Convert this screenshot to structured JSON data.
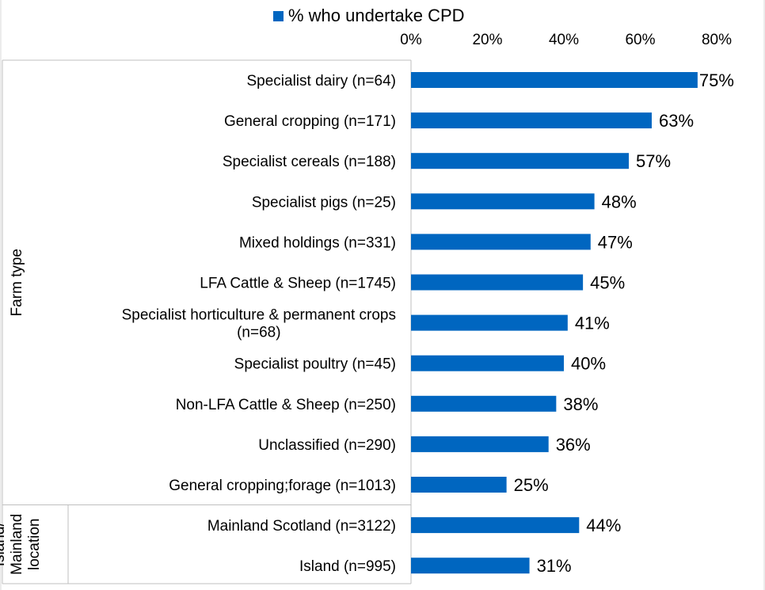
{
  "chart_data": {
    "type": "bar",
    "orientation": "horizontal",
    "legend": {
      "position": "top",
      "entries": [
        "% who undertake CPD"
      ]
    },
    "series": [
      {
        "name": "% who undertake CPD",
        "color": "#0066C0",
        "values": [
          75,
          63,
          57,
          48,
          47,
          45,
          41,
          40,
          38,
          36,
          25,
          44,
          31
        ]
      }
    ],
    "categories": [
      [
        "Specialist dairy (n=64)"
      ],
      [
        "General cropping (n=171)"
      ],
      [
        "Specialist cereals (n=188)"
      ],
      [
        "Specialist pigs (n=25)"
      ],
      [
        "Mixed holdings (n=331)"
      ],
      [
        "LFA Cattle & Sheep (n=1745)"
      ],
      [
        "Specialist horticulture & permanent crops",
        "(n=68)"
      ],
      [
        "Specialist poultry (n=45)"
      ],
      [
        "Non-LFA Cattle & Sheep (n=250)"
      ],
      [
        "Unclassified (n=290)"
      ],
      [
        "General cropping;forage (n=1013)"
      ],
      [
        "Mainland Scotland (n=3122)"
      ],
      [
        "Island (n=995)"
      ]
    ],
    "value_labels": [
      "75%",
      "63%",
      "57%",
      "48%",
      "47%",
      "45%",
      "41%",
      "40%",
      "38%",
      "36%",
      "25%",
      "44%",
      "31%"
    ],
    "groups": [
      {
        "label": [
          "Farm type"
        ],
        "count": 11
      },
      {
        "label": [
          "Island/",
          "Mainland",
          "location"
        ],
        "count": 2
      }
    ],
    "x_axis": {
      "position": "top",
      "ticks": [
        0,
        20,
        40,
        60,
        80
      ],
      "tick_labels": [
        "0%",
        "20%",
        "40%",
        "60%",
        "80%"
      ],
      "range": [
        0,
        80
      ]
    },
    "grid": false,
    "xlabel": "",
    "ylabel": ""
  }
}
